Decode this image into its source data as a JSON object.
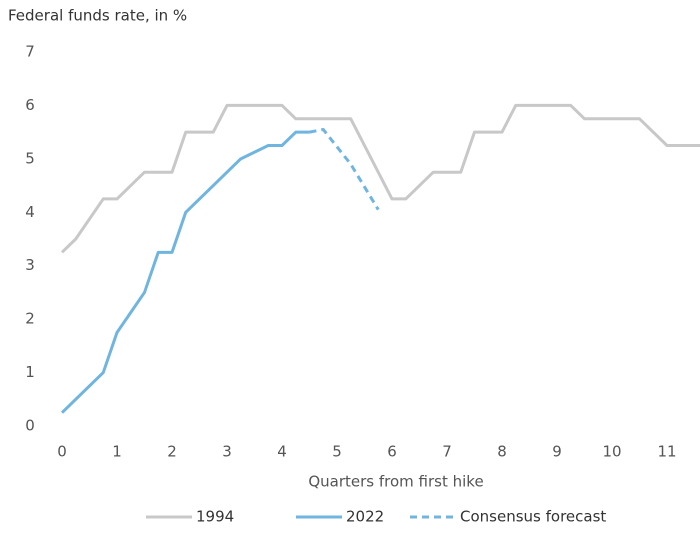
{
  "chart_data": {
    "type": "line",
    "y_label": "Federal funds rate, in %",
    "x_label": "Quarters from first hike",
    "xlim": [
      0,
      11.6
    ],
    "ylim": [
      0,
      7
    ],
    "xticks": [
      0,
      1,
      2,
      3,
      4,
      5,
      6,
      7,
      8,
      9,
      10,
      11
    ],
    "yticks": [
      0,
      1,
      2,
      3,
      4,
      5,
      6,
      7
    ],
    "series": [
      {
        "name": "1994",
        "color": "#c8c8c8",
        "dashed": false,
        "x": [
          0,
          0.25,
          0.75,
          1,
          1.5,
          2,
          2.25,
          2.75,
          3,
          4,
          4.25,
          5.25,
          6,
          6.25,
          6.75,
          7.25,
          7.5,
          8,
          8.25,
          9.25,
          9.5,
          10.5,
          11,
          11.6
        ],
        "values": [
          3.25,
          3.5,
          4.25,
          4.25,
          4.75,
          4.75,
          5.5,
          5.5,
          6,
          6,
          5.75,
          5.75,
          4.25,
          4.25,
          4.75,
          4.75,
          5.5,
          5.5,
          6,
          6,
          5.75,
          5.75,
          5.25,
          5.25
        ]
      },
      {
        "name": "2022",
        "color": "#6fb5e0",
        "dashed": false,
        "x": [
          0,
          0.75,
          1,
          1.5,
          1.75,
          2,
          2.25,
          3.25,
          3.75,
          4,
          4.25,
          4.5
        ],
        "values": [
          0.25,
          1.0,
          1.75,
          2.5,
          3.25,
          3.25,
          4.0,
          5.0,
          5.25,
          5.25,
          5.5,
          5.5
        ]
      },
      {
        "name": "Consensus forecast",
        "color": "#6fb5e0",
        "dashed": true,
        "x": [
          4.5,
          4.75,
          5.25,
          5.75
        ],
        "values": [
          5.5,
          5.55,
          4.9,
          4.05
        ]
      }
    ]
  }
}
